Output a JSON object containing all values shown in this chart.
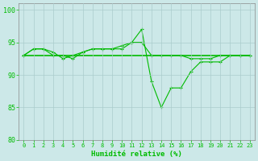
{
  "xlabel": "Humidité relative (%)",
  "xlim": [
    -0.5,
    23.5
  ],
  "ylim": [
    80,
    101
  ],
  "yticks": [
    80,
    85,
    90,
    95,
    100
  ],
  "xticks": [
    0,
    1,
    2,
    3,
    4,
    5,
    6,
    7,
    8,
    9,
    10,
    11,
    12,
    13,
    14,
    15,
    16,
    17,
    18,
    19,
    20,
    21,
    22,
    23
  ],
  "background_color": "#cce8e8",
  "grid_color": "#aacccc",
  "line_color": "#00bb00",
  "line1_x": [
    0,
    1,
    2,
    3,
    4,
    5,
    6,
    7,
    8,
    9,
    10,
    11,
    12,
    13,
    14,
    15,
    16,
    17,
    18,
    19,
    20,
    21,
    22,
    23
  ],
  "line1_y": [
    93,
    94,
    94,
    93,
    93,
    92.5,
    93.5,
    94,
    94,
    94,
    94.5,
    95,
    97,
    89,
    85,
    88,
    88,
    90.5,
    92,
    92,
    92,
    93,
    93,
    93
  ],
  "line2_x": [
    0,
    1,
    2,
    3,
    4,
    5,
    6,
    7,
    8,
    9,
    10,
    11,
    12,
    13,
    14,
    15,
    16,
    17,
    18,
    19,
    20,
    21,
    22,
    23
  ],
  "line2_y": [
    93,
    93,
    93,
    93,
    93,
    93,
    93,
    93,
    93,
    93,
    93,
    93,
    93,
    93,
    93,
    93,
    93,
    93,
    93,
    93,
    93,
    93,
    93,
    93
  ],
  "line3_x": [
    0,
    1,
    2,
    3,
    4,
    5,
    6,
    7,
    8,
    9,
    10,
    11,
    12,
    13,
    14,
    15,
    16,
    17,
    18,
    19,
    20,
    21,
    22,
    23
  ],
  "line3_y": [
    93,
    94,
    94,
    93.5,
    92.5,
    93,
    93.5,
    94,
    94,
    94,
    94,
    95,
    95,
    93,
    93,
    93,
    93,
    92.5,
    92.5,
    92.5,
    93,
    93,
    93,
    93
  ]
}
